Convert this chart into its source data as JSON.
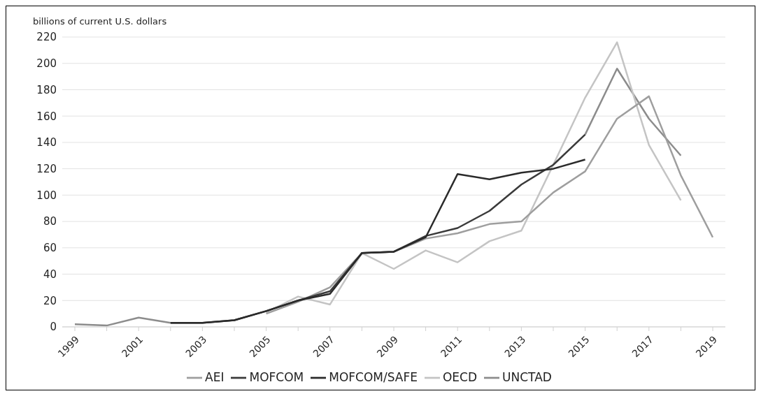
{
  "chart_data": {
    "type": "line",
    "ylabel": "billions of current U.S. dollars",
    "categories": [
      "1999",
      null,
      "2001",
      null,
      "2003",
      null,
      "2005",
      null,
      "2007",
      null,
      "2009",
      null,
      "2011",
      null,
      "2013",
      null,
      "2015",
      null,
      "2017",
      null,
      "2019"
    ],
    "series": [
      {
        "name": "UNCTAD",
        "color": "#8c8c8c",
        "values": [
          2,
          1,
          7,
          3,
          null,
          null,
          null,
          null,
          null,
          null,
          null,
          null,
          null,
          null,
          null,
          null,
          146,
          196,
          158,
          130,
          null
        ]
      },
      {
        "name": "OECD",
        "color": "#c4c4c4",
        "values": [
          null,
          null,
          null,
          null,
          null,
          null,
          11,
          23,
          17,
          56,
          44,
          58,
          49,
          65,
          73,
          123,
          174,
          216,
          138,
          96,
          null
        ]
      },
      {
        "name": "AEI",
        "color": "#9e9e9e",
        "values": [
          null,
          null,
          null,
          null,
          null,
          null,
          10,
          19,
          30,
          56,
          57,
          67,
          71,
          78,
          80,
          102,
          118,
          158,
          175,
          115,
          68
        ]
      },
      {
        "name": "MOFCOM",
        "color": "#3a3a3a",
        "values": [
          null,
          null,
          null,
          3,
          3,
          5,
          12,
          20,
          27,
          56,
          57,
          69,
          75,
          88,
          108,
          123,
          146,
          null,
          null,
          null,
          null
        ]
      },
      {
        "name": "MOFCOM/SAFE",
        "color": "#2a2a2a",
        "values": [
          null,
          null,
          null,
          3,
          3,
          5,
          12,
          20,
          25,
          56,
          57,
          68,
          116,
          112,
          117,
          120,
          127,
          null,
          null,
          null,
          null
        ]
      }
    ],
    "ylim": [
      0,
      220
    ],
    "yticks": [
      0,
      20,
      40,
      60,
      80,
      100,
      120,
      140,
      160,
      180,
      200,
      220
    ],
    "grid": "y",
    "legend": "bottom",
    "marker": "none",
    "line_style": "solid"
  }
}
